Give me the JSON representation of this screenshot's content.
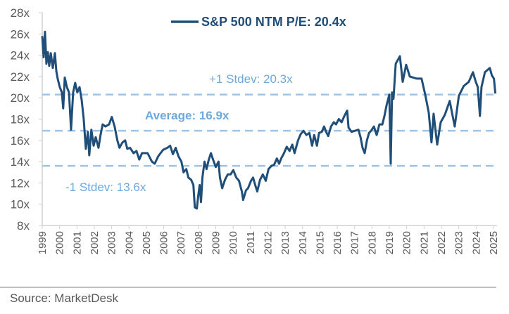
{
  "chart_data": {
    "type": "line",
    "title": "",
    "xlabel": "",
    "ylabel": "",
    "xlim": [
      1999,
      2025.15
    ],
    "ylim": [
      8,
      28
    ],
    "grid": false,
    "legend_position": "top-center",
    "yticks": [
      8,
      10,
      12,
      14,
      16,
      18,
      20,
      22,
      24,
      26,
      28
    ],
    "ytick_labels": [
      "8x",
      "10x",
      "12x",
      "14x",
      "16x",
      "18x",
      "20x",
      "22x",
      "24x",
      "26x",
      "28x"
    ],
    "xtick_labels": [
      "1999",
      "2000",
      "2001",
      "2002",
      "2003",
      "2004",
      "2005",
      "2006",
      "2007",
      "2008",
      "2009",
      "2010",
      "2011",
      "2012",
      "2013",
      "2014",
      "2015",
      "2016",
      "2017",
      "2018",
      "2019",
      "2020",
      "2021",
      "2022",
      "2023",
      "2024",
      "2025"
    ],
    "series": [
      {
        "name": "S&P 500 NTM P/E: 20.4x",
        "color": "#1F4E79",
        "x": [
          1999.0,
          1999.08,
          1999.16,
          1999.24,
          1999.32,
          1999.4,
          1999.49,
          1999.61,
          1999.73,
          1999.81,
          1999.89,
          2000.01,
          2000.13,
          2000.21,
          2000.3,
          2000.42,
          2000.54,
          2000.66,
          2000.78,
          2000.9,
          2001.02,
          2001.15,
          2001.27,
          2001.39,
          2001.51,
          2001.63,
          2001.71,
          2001.83,
          2001.96,
          2002.08,
          2002.24,
          2002.36,
          2002.48,
          2002.64,
          2002.85,
          2003.01,
          2003.17,
          2003.33,
          2003.45,
          2003.62,
          2003.78,
          2003.9,
          2004.06,
          2004.26,
          2004.43,
          2004.59,
          2004.75,
          2004.91,
          2005.07,
          2005.32,
          2005.48,
          2005.68,
          2005.96,
          2006.21,
          2006.37,
          2006.53,
          2006.69,
          2006.85,
          2007.02,
          2007.14,
          2007.3,
          2007.42,
          2007.58,
          2007.71,
          2007.79,
          2007.91,
          2007.99,
          2008.07,
          2008.15,
          2008.23,
          2008.35,
          2008.47,
          2008.6,
          2008.72,
          2008.84,
          2009.0,
          2009.16,
          2009.24,
          2009.37,
          2009.53,
          2009.69,
          2009.85,
          2010.01,
          2010.18,
          2010.34,
          2010.5,
          2010.58,
          2010.74,
          2010.86,
          2011.03,
          2011.15,
          2011.27,
          2011.39,
          2011.55,
          2011.71,
          2011.88,
          2012.04,
          2012.2,
          2012.36,
          2012.52,
          2012.65,
          2012.77,
          2012.93,
          2013.09,
          2013.25,
          2013.41,
          2013.54,
          2013.74,
          2013.9,
          2014.06,
          2014.22,
          2014.39,
          2014.55,
          2014.67,
          2014.83,
          2014.95,
          2015.11,
          2015.24,
          2015.36,
          2015.48,
          2015.64,
          2015.8,
          2015.93,
          2016.09,
          2016.25,
          2016.41,
          2016.57,
          2016.65,
          2016.82,
          2017.02,
          2017.22,
          2017.34,
          2017.46,
          2017.58,
          2017.71,
          2017.83,
          2017.95,
          2018.11,
          2018.27,
          2018.43,
          2018.6,
          2018.72,
          2018.84,
          2019.0,
          2019.08,
          2019.16,
          2019.24,
          2019.37,
          2019.61,
          2019.77,
          2019.97,
          2020.18,
          2020.58,
          2020.86,
          2021.07,
          2021.27,
          2021.43,
          2021.55,
          2021.76,
          2021.96,
          2022.2,
          2022.48,
          2022.77,
          2023.01,
          2023.29,
          2023.58,
          2023.82,
          2023.98,
          2024.1,
          2024.22,
          2024.31,
          2024.51,
          2024.79,
          2024.91,
          2025.03,
          2025.11
        ],
        "y": [
          25.8,
          23.8,
          26.2,
          23.2,
          24.3,
          23.0,
          24.2,
          22.8,
          24.2,
          22.5,
          21.8,
          21.0,
          20.5,
          19.0,
          21.9,
          21.0,
          20.5,
          17.0,
          20.5,
          21.4,
          20.5,
          21.0,
          19.8,
          18.0,
          15.2,
          16.8,
          14.6,
          17.0,
          15.5,
          16.3,
          15.3,
          16.5,
          17.5,
          17.3,
          17.5,
          18.2,
          17.3,
          16.0,
          15.3,
          15.8,
          16.0,
          15.2,
          15.3,
          14.8,
          15.0,
          14.2,
          14.8,
          14.8,
          14.8,
          14.0,
          13.8,
          14.5,
          15.1,
          15.3,
          15.5,
          14.7,
          15.3,
          14.5,
          14.0,
          13.0,
          13.3,
          12.5,
          12.3,
          11.8,
          9.7,
          9.6,
          10.8,
          11.8,
          10.2,
          12.5,
          14.0,
          13.3,
          14.2,
          14.8,
          14.2,
          13.5,
          14.0,
          12.5,
          11.5,
          12.3,
          12.8,
          12.8,
          13.2,
          12.5,
          12.2,
          11.2,
          10.4,
          11.3,
          11.5,
          12.2,
          12.5,
          11.8,
          11.2,
          12.3,
          12.8,
          12.2,
          13.3,
          13.6,
          13.7,
          14.3,
          13.8,
          14.3,
          14.8,
          15.4,
          15.0,
          15.6,
          14.8,
          16.0,
          16.6,
          16.9,
          16.5,
          16.7,
          15.5,
          16.5,
          15.5,
          16.7,
          16.8,
          17.3,
          16.8,
          16.4,
          17.3,
          17.7,
          17.5,
          18.0,
          17.7,
          18.3,
          18.8,
          17.2,
          16.8,
          16.9,
          17.0,
          16.3,
          15.3,
          14.8,
          16.0,
          16.7,
          16.9,
          17.3,
          16.5,
          17.5,
          17.5,
          18.3,
          19.3,
          20.3,
          13.8,
          20.5,
          19.9,
          23.2,
          23.9,
          21.5,
          23.1,
          22.0,
          21.8,
          21.8,
          20.3,
          18.6,
          15.8,
          18.5,
          15.6,
          17.7,
          18.4,
          19.7,
          17.3,
          20.2,
          21.1,
          21.5,
          22.4,
          21.5,
          21.0,
          18.3,
          21.0,
          22.4,
          22.8,
          22.1,
          21.8,
          20.4
        ]
      }
    ],
    "reference_lines": [
      {
        "label": "+1 Stdev: 20.3x",
        "value": 20.3,
        "color": "#9DC3E6"
      },
      {
        "label": "Average: 16.9x",
        "value": 16.9,
        "color": "#9DC3E6"
      },
      {
        "label": "-1 Stdev: 13.6x",
        "value": 13.6,
        "color": "#9DC3E6"
      }
    ]
  },
  "source": "Source: MarketDesk"
}
